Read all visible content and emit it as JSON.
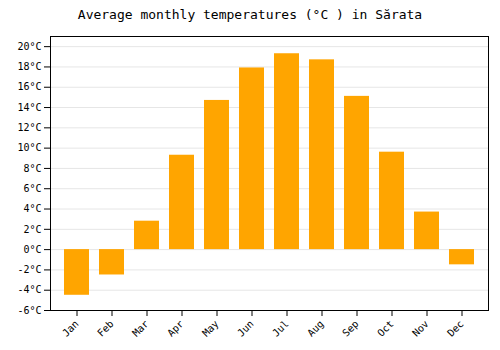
{
  "chart_data": {
    "type": "bar",
    "title": "Average monthly temperatures (°C ) in Sărata",
    "categories": [
      "Jan",
      "Feb",
      "Mar",
      "Apr",
      "May",
      "Jun",
      "Jul",
      "Aug",
      "Sep",
      "Oct",
      "Nov",
      "Dec"
    ],
    "values": [
      -4.5,
      -2.5,
      2.8,
      9.3,
      14.7,
      17.9,
      19.3,
      18.7,
      15.1,
      9.6,
      3.7,
      -1.5
    ],
    "color": "#FFA500",
    "ylim": [
      -6,
      21
    ],
    "yticks": [
      {
        "value": -6,
        "label": "-6°C"
      },
      {
        "value": -4,
        "label": "-4°C"
      },
      {
        "value": -2,
        "label": "-2°C"
      },
      {
        "value": 0,
        "label": "0°C"
      },
      {
        "value": 2,
        "label": "2°C"
      },
      {
        "value": 4,
        "label": "4°C"
      },
      {
        "value": 6,
        "label": "6°C"
      },
      {
        "value": 8,
        "label": "8°C"
      },
      {
        "value": 10,
        "label": "10°C"
      },
      {
        "value": 12,
        "label": "12°C"
      },
      {
        "value": 14,
        "label": "14°C"
      },
      {
        "value": 16,
        "label": "16°C"
      },
      {
        "value": 18,
        "label": "18°C"
      },
      {
        "value": 20,
        "label": "20°C"
      }
    ],
    "grid": true
  }
}
